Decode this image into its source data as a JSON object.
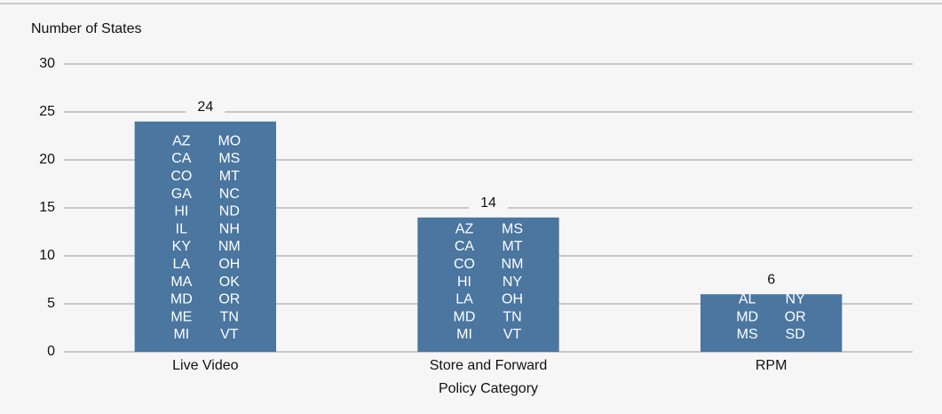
{
  "chart_data": {
    "type": "bar",
    "y_label": "Number of States",
    "x_label": "Policy Category",
    "categories": [
      "Live Video",
      "Store and Forward",
      "RPM"
    ],
    "values": [
      24,
      14,
      6
    ],
    "color": "#4a76a0",
    "states": [
      [
        [
          "AZ",
          "CA",
          "CO",
          "GA",
          "HI",
          "IL",
          "KY",
          "LA",
          "MA",
          "MD",
          "ME",
          "MI"
        ],
        [
          "MO",
          "MS",
          "MT",
          "NC",
          "ND",
          "NH",
          "NM",
          "OH",
          "OK",
          "OR",
          "TN",
          "VT"
        ]
      ],
      [
        [
          "AZ",
          "CA",
          "CO",
          "HI",
          "LA",
          "MD",
          "MI"
        ],
        [
          "MS",
          "MT",
          "NM",
          "NY",
          "OH",
          "TN",
          "VT"
        ]
      ],
      [
        [
          "AL",
          "MD",
          "MS"
        ],
        [
          "NY",
          "OR",
          "SD"
        ]
      ]
    ],
    "ylim": [
      0,
      30
    ],
    "yticks": [
      0,
      5,
      10,
      15,
      20,
      25,
      30
    ],
    "grid": true
  }
}
